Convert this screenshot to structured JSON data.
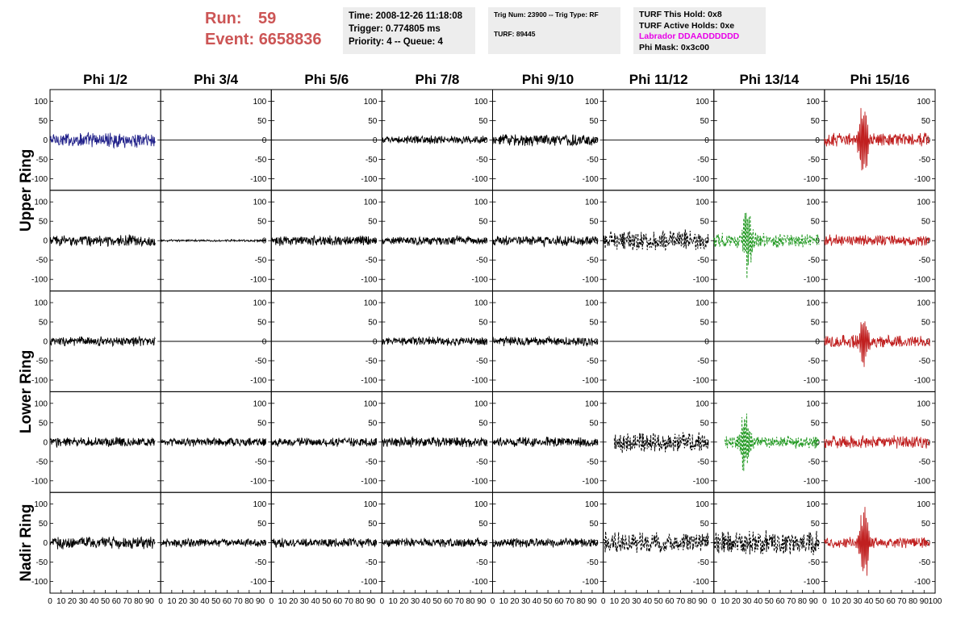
{
  "header": {
    "run_label": "Run:",
    "run_value": "59",
    "event_label": "Event:",
    "event_value": "6658836",
    "box1": [
      "Time: 2008-12-26 11:18:08",
      "Trigger: 0.774805 ms",
      "Priority: 4 -- Queue: 4"
    ],
    "box2": [
      "Trig Num: 23900 -- Trig Type: RF",
      "",
      "TURF: 89445"
    ],
    "box3": [
      "TURF This Hold: 0x8",
      "TURF Active Holds: 0xe",
      "Labrador DDAADDDDDD",
      "Phi Mask: 0x3c00"
    ]
  },
  "chart_data": {
    "type": "line",
    "columns": [
      "Phi 1/2",
      "Phi 3/4",
      "Phi 5/6",
      "Phi 7/8",
      "Phi 9/10",
      "Phi 11/12",
      "Phi 13/14",
      "Phi 15/16"
    ],
    "ring_labels": [
      "Upper Ring",
      "Lower Ring",
      "Nadir Ring"
    ],
    "ylim": [
      -130,
      130
    ],
    "yticks": [
      -100,
      -50,
      0,
      50,
      100
    ],
    "xlim": [
      0,
      100
    ],
    "xticks": [
      0,
      10,
      20,
      30,
      40,
      50,
      60,
      70,
      80,
      90,
      100
    ],
    "colors": {
      "blue": "#22228a",
      "black": "#000000",
      "red": "#c02020",
      "green": "#229922"
    },
    "panels": [
      [
        {
          "color": "blue",
          "amp": 22,
          "x0": 0,
          "x1": 95
        },
        {
          "color": "black",
          "amp": 0,
          "x0": 0,
          "x1": 100,
          "flat": true
        },
        {
          "color": "black",
          "amp": 0,
          "x0": 0,
          "x1": 100,
          "flat": true
        },
        {
          "color": "black",
          "amp": 12,
          "x0": 0,
          "x1": 95
        },
        {
          "color": "black",
          "amp": 18,
          "x0": 0,
          "x1": 95
        },
        {
          "color": "black",
          "amp": 0,
          "x0": 0,
          "x1": 100,
          "flat": true
        },
        {
          "color": "black",
          "amp": 0,
          "x0": 0,
          "x1": 100,
          "flat": true
        },
        {
          "color": "red",
          "amp": 20,
          "x0": 0,
          "x1": 95,
          "pulse": {
            "center": 35,
            "amp": 110
          }
        }
      ],
      [
        {
          "color": "black",
          "amp": 16,
          "x0": 0,
          "x1": 95
        },
        {
          "color": "black",
          "amp": 3,
          "x0": 0,
          "x1": 95
        },
        {
          "color": "black",
          "amp": 15,
          "x0": 0,
          "x1": 95
        },
        {
          "color": "black",
          "amp": 14,
          "x0": 0,
          "x1": 95
        },
        {
          "color": "black",
          "amp": 15,
          "x0": 0,
          "x1": 95
        },
        {
          "color": "black",
          "amp": 30,
          "x0": 0,
          "x1": 95,
          "dashed": true
        },
        {
          "color": "green",
          "amp": 22,
          "x0": 0,
          "x1": 95,
          "dashed": true,
          "pulse": {
            "center": 30,
            "amp": 90
          }
        },
        {
          "color": "red",
          "amp": 17,
          "x0": 0,
          "x1": 95
        }
      ],
      [
        {
          "color": "black",
          "amp": 14,
          "x0": 0,
          "x1": 95
        },
        {
          "color": "black",
          "amp": 0,
          "x0": 0,
          "x1": 100,
          "flat": true
        },
        {
          "color": "black",
          "amp": 0,
          "x0": 0,
          "x1": 100,
          "flat": true
        },
        {
          "color": "black",
          "amp": 13,
          "x0": 0,
          "x1": 95
        },
        {
          "color": "black",
          "amp": 14,
          "x0": 0,
          "x1": 95
        },
        {
          "color": "black",
          "amp": 0,
          "x0": 0,
          "x1": 100,
          "flat": true
        },
        {
          "color": "black",
          "amp": 0,
          "x0": 0,
          "x1": 100,
          "flat": true
        },
        {
          "color": "red",
          "amp": 18,
          "x0": 0,
          "x1": 95,
          "pulse": {
            "center": 35,
            "amp": 75
          }
        }
      ],
      [
        {
          "color": "black",
          "amp": 15,
          "x0": 0,
          "x1": 95
        },
        {
          "color": "black",
          "amp": 13,
          "x0": 0,
          "x1": 95
        },
        {
          "color": "black",
          "amp": 13,
          "x0": 0,
          "x1": 95
        },
        {
          "color": "black",
          "amp": 15,
          "x0": 0,
          "x1": 95
        },
        {
          "color": "black",
          "amp": 14,
          "x0": 0,
          "x1": 95
        },
        {
          "color": "black",
          "amp": 30,
          "x0": 10,
          "x1": 95,
          "dashed": true
        },
        {
          "color": "green",
          "amp": 18,
          "x0": 10,
          "x1": 95,
          "dashed": true,
          "pulse": {
            "center": 28,
            "amp": 90
          }
        },
        {
          "color": "red",
          "amp": 19,
          "x0": 0,
          "x1": 95
        }
      ],
      [
        {
          "color": "black",
          "amp": 18,
          "x0": 0,
          "x1": 95
        },
        {
          "color": "black",
          "amp": 12,
          "x0": 0,
          "x1": 95
        },
        {
          "color": "black",
          "amp": 13,
          "x0": 0,
          "x1": 95
        },
        {
          "color": "black",
          "amp": 13,
          "x0": 0,
          "x1": 95
        },
        {
          "color": "black",
          "amp": 13,
          "x0": 0,
          "x1": 95
        },
        {
          "color": "black",
          "amp": 32,
          "x0": 0,
          "x1": 95,
          "dashed": true
        },
        {
          "color": "black",
          "amp": 36,
          "x0": 0,
          "x1": 95,
          "dashed": true
        },
        {
          "color": "red",
          "amp": 16,
          "x0": 0,
          "x1": 95,
          "pulse": {
            "center": 36,
            "amp": 115
          }
        }
      ]
    ]
  }
}
